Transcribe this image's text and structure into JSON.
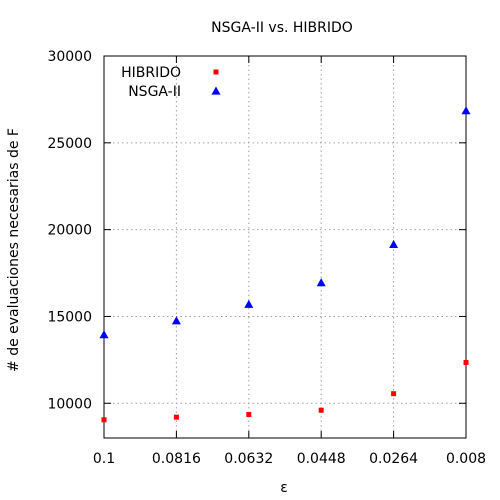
{
  "chart_data": {
    "type": "scatter",
    "title": "NSGA-II vs. HIBRIDO",
    "xlabel": "ε",
    "ylabel": "# de evaluaciones necesarias de F",
    "x": [
      0.1,
      0.0816,
      0.0632,
      0.0448,
      0.0264,
      0.008
    ],
    "x_tick_labels": [
      "0.1",
      "0.0816",
      "0.0632",
      "0.0448",
      "0.0264",
      "0.008"
    ],
    "x_reversed": true,
    "ylim": [
      8000,
      30000
    ],
    "y_ticks": [
      10000,
      15000,
      20000,
      25000,
      30000
    ],
    "y_tick_labels": [
      "10000",
      "15000",
      "20000",
      "25000",
      "30000"
    ],
    "grid": true,
    "legend_position": "top-left",
    "series": [
      {
        "name": "HIBRIDO",
        "marker": "square",
        "color": "#ff0000",
        "values": [
          9050,
          9200,
          9350,
          9600,
          10550,
          12350
        ]
      },
      {
        "name": "NSGA-II",
        "marker": "triangle",
        "color": "#0000ff",
        "values": [
          13950,
          14750,
          15700,
          16950,
          19150,
          26850
        ]
      }
    ]
  }
}
